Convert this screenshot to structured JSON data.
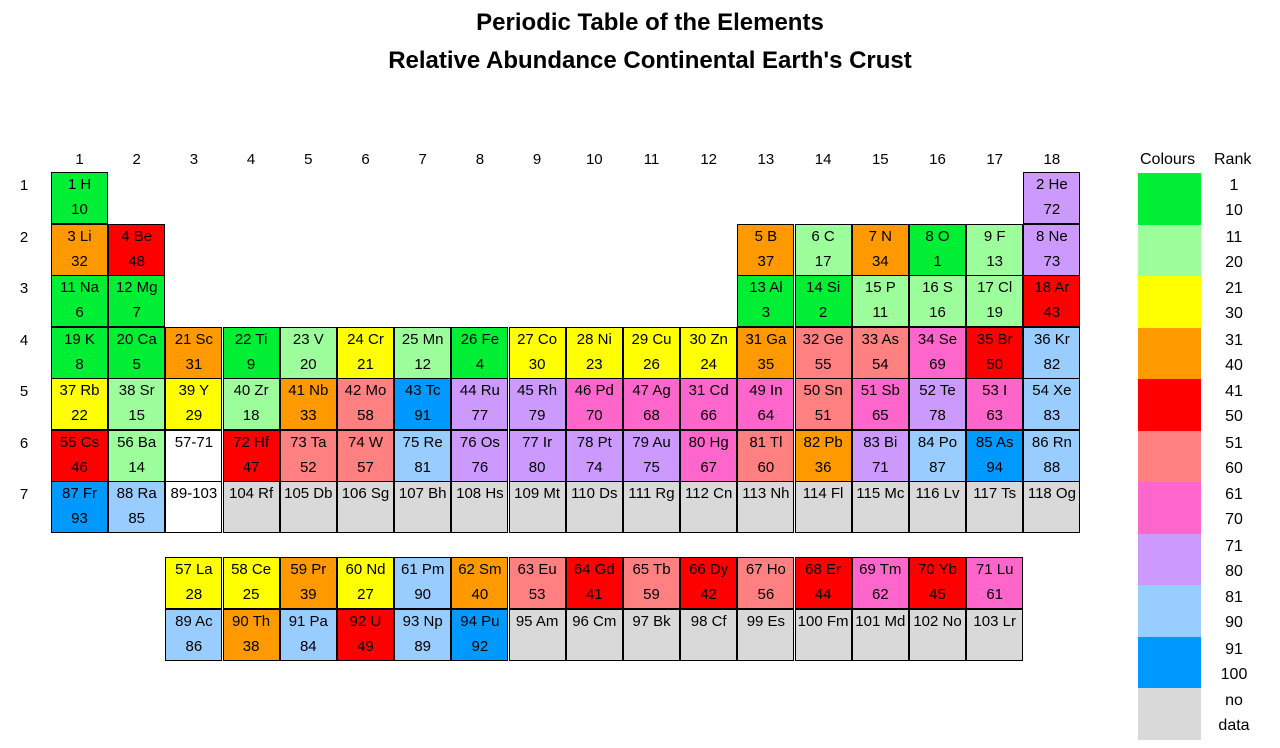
{
  "title_line1": "Periodic Table of the Elements",
  "title_line2": "Relative Abundance Continental Earth's Crust",
  "chart_data": {
    "type": "table",
    "group_labels": [
      "1",
      "2",
      "3",
      "4",
      "5",
      "6",
      "7",
      "8",
      "9",
      "10",
      "11",
      "12",
      "13",
      "14",
      "15",
      "16",
      "17",
      "18"
    ],
    "period_labels": [
      "1",
      "2",
      "3",
      "4",
      "5",
      "6",
      "7"
    ],
    "legend": {
      "colours_label": "Colours",
      "rank_label": "Rank",
      "bins": [
        {
          "color": "#00ee33",
          "from": "1",
          "to": "10"
        },
        {
          "color": "#9cff9c",
          "from": "11",
          "to": "20"
        },
        {
          "color": "#ffff00",
          "from": "21",
          "to": "30"
        },
        {
          "color": "#ff9900",
          "from": "31",
          "to": "40"
        },
        {
          "color": "#ff0000",
          "from": "41",
          "to": "50"
        },
        {
          "color": "#ff8080",
          "from": "51",
          "to": "60"
        },
        {
          "color": "#ff66cc",
          "from": "61",
          "to": "70"
        },
        {
          "color": "#cc99ff",
          "from": "71",
          "to": "80"
        },
        {
          "color": "#99ccff",
          "from": "81",
          "to": "90"
        },
        {
          "color": "#0099ff",
          "from": "91",
          "to": "100"
        },
        {
          "color": "#d9d9d9",
          "from": "no",
          "to": "data"
        }
      ]
    },
    "cells": [
      {
        "label": "1 H",
        "rank": "10",
        "row": 1,
        "col": 1
      },
      {
        "label": "2 He",
        "rank": "72",
        "row": 1,
        "col": 18
      },
      {
        "label": "3 Li",
        "rank": "32",
        "row": 2,
        "col": 1
      },
      {
        "label": "4 Be",
        "rank": "48",
        "row": 2,
        "col": 2
      },
      {
        "label": "5 B",
        "rank": "37",
        "row": 2,
        "col": 13
      },
      {
        "label": "6 C",
        "rank": "17",
        "row": 2,
        "col": 14
      },
      {
        "label": "7 N",
        "rank": "34",
        "row": 2,
        "col": 15
      },
      {
        "label": "8 O",
        "rank": "1",
        "row": 2,
        "col": 16
      },
      {
        "label": "9 F",
        "rank": "13",
        "row": 2,
        "col": 17
      },
      {
        "label": "8 Ne",
        "rank": "73",
        "row": 2,
        "col": 18
      },
      {
        "label": "11 Na",
        "rank": "6",
        "row": 3,
        "col": 1
      },
      {
        "label": "12 Mg",
        "rank": "7",
        "row": 3,
        "col": 2
      },
      {
        "label": "13 Al",
        "rank": "3",
        "row": 3,
        "col": 13
      },
      {
        "label": "14 Si",
        "rank": "2",
        "row": 3,
        "col": 14
      },
      {
        "label": "15 P",
        "rank": "11",
        "row": 3,
        "col": 15
      },
      {
        "label": "16 S",
        "rank": "16",
        "row": 3,
        "col": 16
      },
      {
        "label": "17 Cl",
        "rank": "19",
        "row": 3,
        "col": 17
      },
      {
        "label": "18 Ar",
        "rank": "43",
        "row": 3,
        "col": 18
      },
      {
        "label": "19 K",
        "rank": "8",
        "row": 4,
        "col": 1
      },
      {
        "label": "20 Ca",
        "rank": "5",
        "row": 4,
        "col": 2
      },
      {
        "label": "21 Sc",
        "rank": "31",
        "row": 4,
        "col": 3
      },
      {
        "label": "22 Ti",
        "rank": "9",
        "row": 4,
        "col": 4
      },
      {
        "label": "23 V",
        "rank": "20",
        "row": 4,
        "col": 5
      },
      {
        "label": "24 Cr",
        "rank": "21",
        "row": 4,
        "col": 6
      },
      {
        "label": "25 Mn",
        "rank": "12",
        "row": 4,
        "col": 7
      },
      {
        "label": "26 Fe",
        "rank": "4",
        "row": 4,
        "col": 8
      },
      {
        "label": "27 Co",
        "rank": "30",
        "row": 4,
        "col": 9
      },
      {
        "label": "28 Ni",
        "rank": "23",
        "row": 4,
        "col": 10
      },
      {
        "label": "29 Cu",
        "rank": "26",
        "row": 4,
        "col": 11
      },
      {
        "label": "30 Zn",
        "rank": "24",
        "row": 4,
        "col": 12
      },
      {
        "label": "31 Ga",
        "rank": "35",
        "row": 4,
        "col": 13
      },
      {
        "label": "32 Ge",
        "rank": "55",
        "row": 4,
        "col": 14
      },
      {
        "label": "33 As",
        "rank": "54",
        "row": 4,
        "col": 15
      },
      {
        "label": "34 Se",
        "rank": "69",
        "row": 4,
        "col": 16
      },
      {
        "label": "35 Br",
        "rank": "50",
        "row": 4,
        "col": 17
      },
      {
        "label": "36 Kr",
        "rank": "82",
        "row": 4,
        "col": 18
      },
      {
        "label": "37 Rb",
        "rank": "22",
        "row": 5,
        "col": 1
      },
      {
        "label": "38 Sr",
        "rank": "15",
        "row": 5,
        "col": 2
      },
      {
        "label": "39 Y",
        "rank": "29",
        "row": 5,
        "col": 3
      },
      {
        "label": "40 Zr",
        "rank": "18",
        "row": 5,
        "col": 4
      },
      {
        "label": "41 Nb",
        "rank": "33",
        "row": 5,
        "col": 5
      },
      {
        "label": "42 Mo",
        "rank": "58",
        "row": 5,
        "col": 6
      },
      {
        "label": "43 Tc",
        "rank": "91",
        "row": 5,
        "col": 7
      },
      {
        "label": "44 Ru",
        "rank": "77",
        "row": 5,
        "col": 8
      },
      {
        "label": "45 Rh",
        "rank": "79",
        "row": 5,
        "col": 9
      },
      {
        "label": "46 Pd",
        "rank": "70",
        "row": 5,
        "col": 10
      },
      {
        "label": "47 Ag",
        "rank": "68",
        "row": 5,
        "col": 11
      },
      {
        "label": "31 Cd",
        "rank": "66",
        "row": 5,
        "col": 12
      },
      {
        "label": "49 In",
        "rank": "64",
        "row": 5,
        "col": 13
      },
      {
        "label": "50 Sn",
        "rank": "51",
        "row": 5,
        "col": 14
      },
      {
        "label": "51 Sb",
        "rank": "65",
        "row": 5,
        "col": 15
      },
      {
        "label": "52 Te",
        "rank": "78",
        "row": 5,
        "col": 16
      },
      {
        "label": "53 I",
        "rank": "63",
        "row": 5,
        "col": 17
      },
      {
        "label": "54 Xe",
        "rank": "83",
        "row": 5,
        "col": 18
      },
      {
        "label": "55 Cs",
        "rank": "46",
        "row": 6,
        "col": 1
      },
      {
        "label": "56 Ba",
        "rank": "14",
        "row": 6,
        "col": 2
      },
      {
        "label": "57-71",
        "rank": "",
        "row": 6,
        "col": 3
      },
      {
        "label": "72 Hf",
        "rank": "47",
        "row": 6,
        "col": 4
      },
      {
        "label": "73 Ta",
        "rank": "52",
        "row": 6,
        "col": 5
      },
      {
        "label": "74 W",
        "rank": "57",
        "row": 6,
        "col": 6
      },
      {
        "label": "75 Re",
        "rank": "81",
        "row": 6,
        "col": 7
      },
      {
        "label": "76 Os",
        "rank": "76",
        "row": 6,
        "col": 8
      },
      {
        "label": "77 Ir",
        "rank": "80",
        "row": 6,
        "col": 9
      },
      {
        "label": "78 Pt",
        "rank": "74",
        "row": 6,
        "col": 10
      },
      {
        "label": "79 Au",
        "rank": "75",
        "row": 6,
        "col": 11
      },
      {
        "label": "80 Hg",
        "rank": "67",
        "row": 6,
        "col": 12
      },
      {
        "label": "81 Tl",
        "rank": "60",
        "row": 6,
        "col": 13
      },
      {
        "label": "82 Pb",
        "rank": "36",
        "row": 6,
        "col": 14
      },
      {
        "label": "83 Bi",
        "rank": "71",
        "row": 6,
        "col": 15
      },
      {
        "label": "84 Po",
        "rank": "87",
        "row": 6,
        "col": 16
      },
      {
        "label": "85 As",
        "rank": "94",
        "row": 6,
        "col": 17
      },
      {
        "label": "86 Rn",
        "rank": "88",
        "row": 6,
        "col": 18
      },
      {
        "label": "87 Fr",
        "rank": "93",
        "row": 7,
        "col": 1
      },
      {
        "label": "88 Ra",
        "rank": "85",
        "row": 7,
        "col": 2
      },
      {
        "label": "89-103",
        "rank": "",
        "row": 7,
        "col": 3
      },
      {
        "label": "104 Rf",
        "rank": "",
        "row": 7,
        "col": 4
      },
      {
        "label": "105 Db",
        "rank": "",
        "row": 7,
        "col": 5
      },
      {
        "label": "106 Sg",
        "rank": "",
        "row": 7,
        "col": 6
      },
      {
        "label": "107 Bh",
        "rank": "",
        "row": 7,
        "col": 7
      },
      {
        "label": "108 Hs",
        "rank": "",
        "row": 7,
        "col": 8
      },
      {
        "label": "109 Mt",
        "rank": "",
        "row": 7,
        "col": 9
      },
      {
        "label": "110 Ds",
        "rank": "",
        "row": 7,
        "col": 10
      },
      {
        "label": "111 Rg",
        "rank": "",
        "row": 7,
        "col": 11
      },
      {
        "label": "112 Cn",
        "rank": "",
        "row": 7,
        "col": 12
      },
      {
        "label": "113 Nh",
        "rank": "",
        "row": 7,
        "col": 13
      },
      {
        "label": "114 Fl",
        "rank": "",
        "row": 7,
        "col": 14
      },
      {
        "label": "115 Mc",
        "rank": "",
        "row": 7,
        "col": 15
      },
      {
        "label": "116 Lv",
        "rank": "",
        "row": 7,
        "col": 16
      },
      {
        "label": "117 Ts",
        "rank": "",
        "row": 7,
        "col": 17
      },
      {
        "label": "118 Og",
        "rank": "",
        "row": 7,
        "col": 18
      },
      {
        "label": "57 La",
        "rank": "28",
        "row": 8,
        "col": 3
      },
      {
        "label": "58 Ce",
        "rank": "25",
        "row": 8,
        "col": 4
      },
      {
        "label": "59 Pr",
        "rank": "39",
        "row": 8,
        "col": 5
      },
      {
        "label": "60 Nd",
        "rank": "27",
        "row": 8,
        "col": 6
      },
      {
        "label": "61 Pm",
        "rank": "90",
        "row": 8,
        "col": 7
      },
      {
        "label": "62 Sm",
        "rank": "40",
        "row": 8,
        "col": 8
      },
      {
        "label": "63 Eu",
        "rank": "53",
        "row": 8,
        "col": 9
      },
      {
        "label": "64 Gd",
        "rank": "41",
        "row": 8,
        "col": 10
      },
      {
        "label": "65 Tb",
        "rank": "59",
        "row": 8,
        "col": 11
      },
      {
        "label": "66 Dy",
        "rank": "42",
        "row": 8,
        "col": 12
      },
      {
        "label": "67 Ho",
        "rank": "56",
        "row": 8,
        "col": 13
      },
      {
        "label": "68 Er",
        "rank": "44",
        "row": 8,
        "col": 14
      },
      {
        "label": "69 Tm",
        "rank": "62",
        "row": 8,
        "col": 15
      },
      {
        "label": "70 Yb",
        "rank": "45",
        "row": 8,
        "col": 16
      },
      {
        "label": "71 Lu",
        "rank": "61",
        "row": 8,
        "col": 17
      },
      {
        "label": "89 Ac",
        "rank": "86",
        "row": 9,
        "col": 3
      },
      {
        "label": "90 Th",
        "rank": "38",
        "row": 9,
        "col": 4
      },
      {
        "label": "91 Pa",
        "rank": "84",
        "row": 9,
        "col": 5
      },
      {
        "label": "92 U",
        "rank": "49",
        "row": 9,
        "col": 6
      },
      {
        "label": "93 Np",
        "rank": "89",
        "row": 9,
        "col": 7
      },
      {
        "label": "94 Pu",
        "rank": "92",
        "row": 9,
        "col": 8
      },
      {
        "label": "95 Am",
        "rank": "",
        "row": 9,
        "col": 9
      },
      {
        "label": "96 Cm",
        "rank": "",
        "row": 9,
        "col": 10
      },
      {
        "label": "97 Bk",
        "rank": "",
        "row": 9,
        "col": 11
      },
      {
        "label": "98 Cf",
        "rank": "",
        "row": 9,
        "col": 12
      },
      {
        "label": "99 Es",
        "rank": "",
        "row": 9,
        "col": 13
      },
      {
        "label": "100 Fm",
        "rank": "",
        "row": 9,
        "col": 14
      },
      {
        "label": "101 Md",
        "rank": "",
        "row": 9,
        "col": 15
      },
      {
        "label": "102 No",
        "rank": "",
        "row": 9,
        "col": 16
      },
      {
        "label": "103 Lr",
        "rank": "",
        "row": 9,
        "col": 17
      }
    ]
  }
}
